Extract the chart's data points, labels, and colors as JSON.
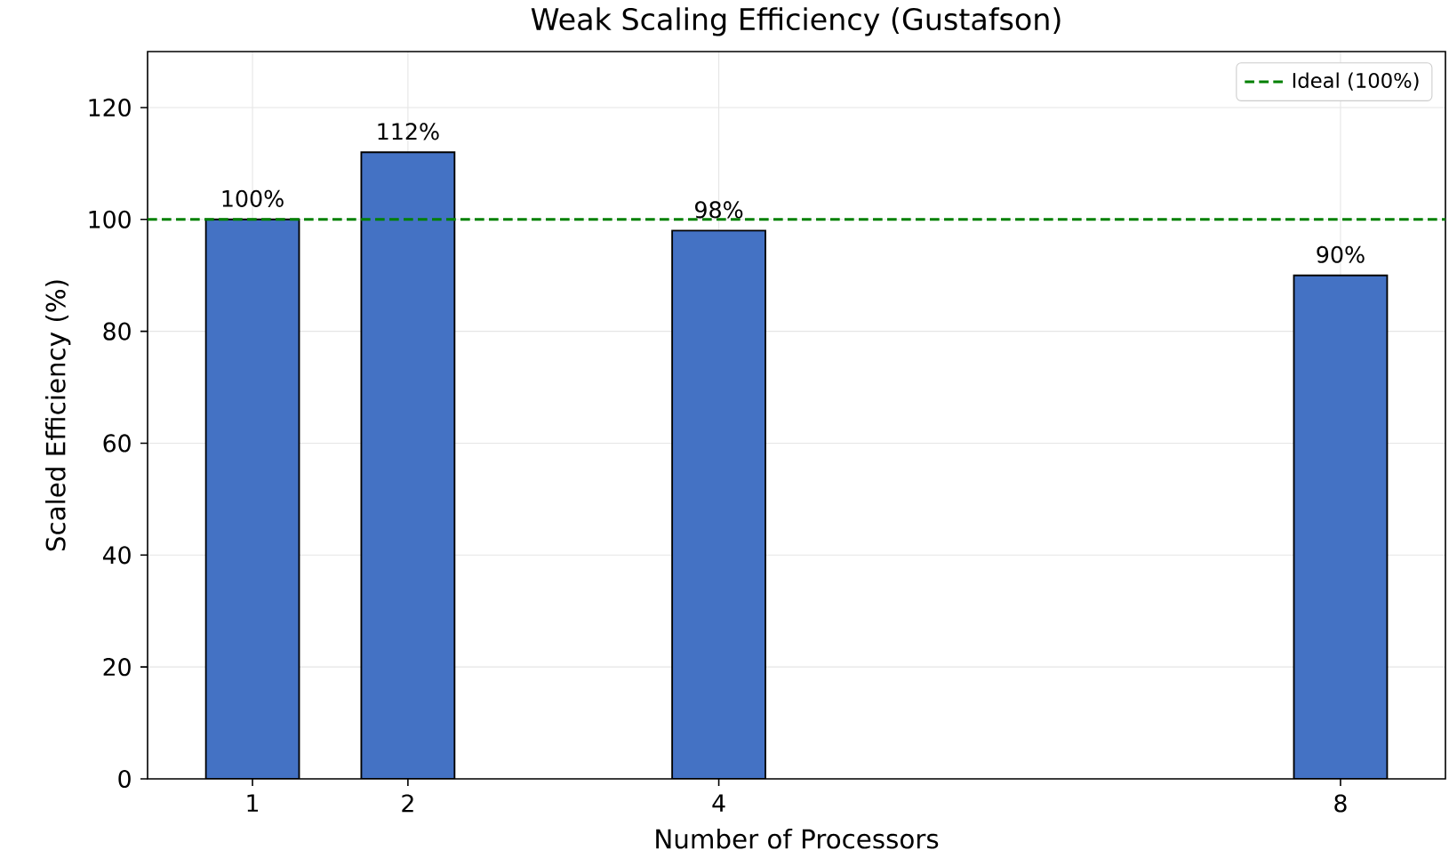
{
  "chart_data": {
    "type": "bar",
    "title": "Weak Scaling Efficiency (Gustafson)",
    "xlabel": "Number of Processors",
    "ylabel": "Scaled Efficiency (%)",
    "x": [
      1,
      2,
      4,
      8
    ],
    "values": [
      100,
      112,
      98,
      90
    ],
    "value_labels": [
      "100%",
      "112%",
      "98%",
      "90%"
    ],
    "color": "#4472c4",
    "xlim": [
      0.325,
      8.675
    ],
    "xticks": [
      1,
      2,
      4,
      8
    ],
    "ylim": [
      0,
      130
    ],
    "yticks": [
      0,
      20,
      40,
      60,
      80,
      100,
      120
    ],
    "ref_lines": [
      {
        "axis": "y",
        "value": 100,
        "label": "Ideal (100%)",
        "color": "#008000",
        "line_style": "dashed"
      }
    ],
    "grid": true,
    "legend": "top right"
  }
}
